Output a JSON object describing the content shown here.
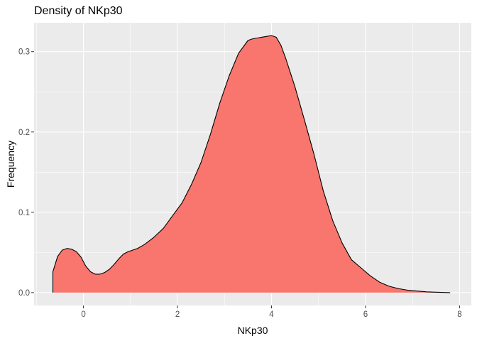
{
  "chart_data": {
    "type": "area",
    "title": "Density of NKp30",
    "xlabel": "NKp30",
    "ylabel": "Frequency",
    "xlim": [
      -1.05,
      8.25
    ],
    "ylim": [
      -0.016,
      0.336
    ],
    "x_ticks": [
      0,
      2,
      4,
      6,
      8
    ],
    "x_tick_labels": [
      "0",
      "2",
      "4",
      "6",
      "8"
    ],
    "y_ticks": [
      0.0,
      0.1,
      0.2,
      0.3
    ],
    "y_tick_labels": [
      "0.0",
      "0.1",
      "0.2",
      "0.3"
    ],
    "grid": true,
    "legend": "none",
    "colors": {
      "fill": "#F8766D",
      "outline": "#000000",
      "panel": "#EBEBEB",
      "grid": "#FFFFFF"
    },
    "series": [
      {
        "x": [
          -0.65,
          -0.55,
          -0.45,
          -0.35,
          -0.25,
          -0.15,
          -0.05,
          0.05,
          0.15,
          0.25,
          0.35,
          0.45,
          0.55,
          0.65,
          0.75,
          0.85,
          0.95,
          1.05,
          1.15,
          1.3,
          1.5,
          1.7,
          1.9,
          2.1,
          2.3,
          2.5,
          2.7,
          2.9,
          3.1,
          3.3,
          3.5,
          3.6,
          3.7,
          3.8,
          3.9,
          4.0,
          4.1,
          4.2,
          4.3,
          4.4,
          4.5,
          4.7,
          4.9,
          5.1,
          5.3,
          5.5,
          5.7,
          5.9,
          6.1,
          6.3,
          6.5,
          6.7,
          6.9,
          7.1,
          7.3,
          7.5,
          7.8
        ],
        "y": [
          0.026,
          0.045,
          0.053,
          0.055,
          0.054,
          0.051,
          0.044,
          0.033,
          0.026,
          0.023,
          0.023,
          0.025,
          0.029,
          0.035,
          0.042,
          0.048,
          0.051,
          0.053,
          0.055,
          0.06,
          0.069,
          0.08,
          0.096,
          0.112,
          0.135,
          0.162,
          0.197,
          0.236,
          0.27,
          0.298,
          0.314,
          0.316,
          0.317,
          0.318,
          0.319,
          0.32,
          0.318,
          0.308,
          0.292,
          0.274,
          0.256,
          0.215,
          0.173,
          0.127,
          0.09,
          0.062,
          0.041,
          0.031,
          0.021,
          0.013,
          0.008,
          0.005,
          0.003,
          0.002,
          0.001,
          0.0005,
          0.0
        ]
      }
    ]
  }
}
